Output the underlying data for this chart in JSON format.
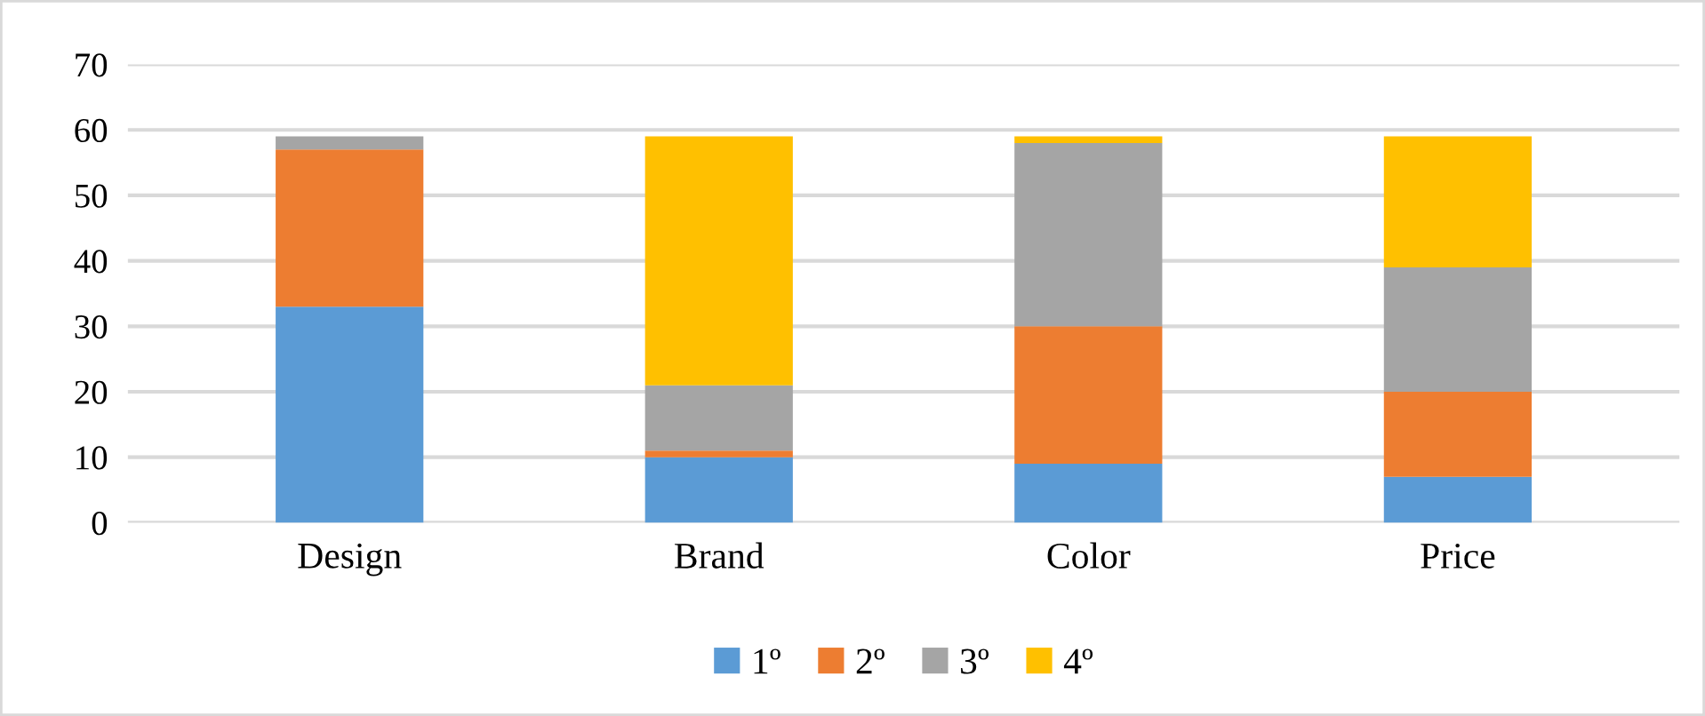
{
  "chart_data": {
    "type": "bar",
    "stacked": true,
    "categories": [
      "Design",
      "Brand",
      "Color",
      "Price"
    ],
    "series": [
      {
        "name": "1º",
        "color": "#5b9bd5",
        "values": [
          33,
          10,
          9,
          7
        ]
      },
      {
        "name": "2º",
        "color": "#ed7d31",
        "values": [
          24,
          1,
          21,
          13
        ]
      },
      {
        "name": "3º",
        "color": "#a5a5a5",
        "values": [
          2,
          10,
          28,
          19
        ]
      },
      {
        "name": "4º",
        "color": "#ffc000",
        "values": [
          0,
          38,
          1,
          20
        ]
      }
    ],
    "ylim": [
      0,
      70
    ],
    "yticks": [
      0,
      10,
      20,
      30,
      40,
      50,
      60,
      70
    ],
    "grid": "y",
    "legend": "bottom"
  }
}
